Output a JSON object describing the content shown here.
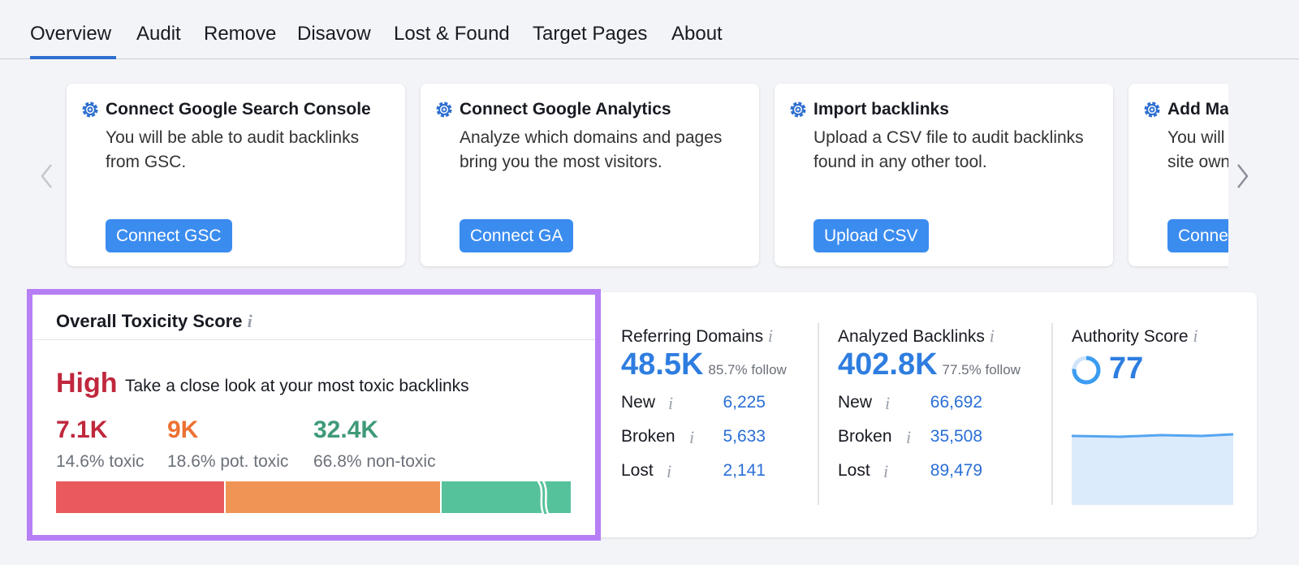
{
  "tabs": {
    "items": [
      "Overview",
      "Audit",
      "Remove",
      "Disavow",
      "Lost & Found",
      "Target Pages",
      "About"
    ],
    "active": "Overview"
  },
  "cards": [
    {
      "title": "Connect Google Search Console",
      "lines": [
        "You will be able to audit backlinks",
        "from GSC."
      ],
      "button": "Connect GSC"
    },
    {
      "title": "Connect Google Analytics",
      "lines": [
        "Analyze which domains and pages",
        "bring you the most visitors."
      ],
      "button": "Connect GA"
    },
    {
      "title": "Import backlinks",
      "lines": [
        "Upload a CSV file to audit backlinks",
        "found in any other tool."
      ],
      "button": "Upload CSV"
    },
    {
      "title": "Add Ma",
      "lines": [
        "You will",
        "site own"
      ],
      "button": "Conne"
    }
  ],
  "toxicity": {
    "title": "Overall Toxicity Score",
    "level": "High",
    "description": "Take a close look at your most toxic backlinks",
    "segments": [
      {
        "value": "7.1K",
        "label": "14.6% toxic",
        "color": "#c0283d"
      },
      {
        "value": "9K",
        "label": "18.6% pot. toxic",
        "color": "#ec7132"
      },
      {
        "value": "32.4K",
        "label": "66.8% non-toxic",
        "color": "#3f9a78"
      }
    ]
  },
  "metrics": [
    {
      "label": "Referring Domains",
      "value": "48.5K",
      "follow": "85.7% follow",
      "rows": [
        [
          "New",
          "6,225"
        ],
        [
          "Broken",
          "5,633"
        ],
        [
          "Lost",
          "2,141"
        ]
      ]
    },
    {
      "label": "Analyzed Backlinks",
      "value": "402.8K",
      "follow": "77.5% follow",
      "rows": [
        [
          "New",
          "66,692"
        ],
        [
          "Broken",
          "35,508"
        ],
        [
          "Lost",
          "89,479"
        ]
      ]
    }
  ],
  "authority": {
    "label": "Authority Score",
    "value": "77"
  }
}
